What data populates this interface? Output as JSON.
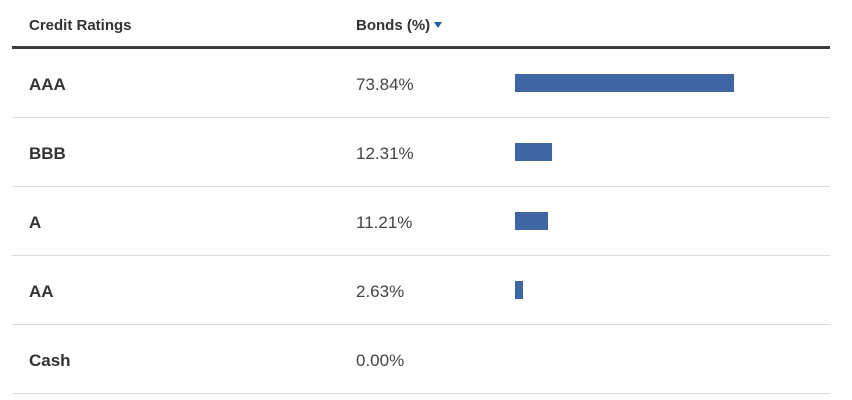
{
  "table": {
    "headers": {
      "rating": "Credit Ratings",
      "bonds": "Bonds (%)"
    },
    "sort": {
      "column": "bonds",
      "direction": "descending"
    },
    "bar_color": "#3f66a3",
    "rows": [
      {
        "rating": "AAA",
        "value_label": "73.84%",
        "value": 73.84
      },
      {
        "rating": "BBB",
        "value_label": "12.31%",
        "value": 12.31
      },
      {
        "rating": "A",
        "value_label": "11.21%",
        "value": 11.21
      },
      {
        "rating": "AA",
        "value_label": "2.63%",
        "value": 2.63
      },
      {
        "rating": "Cash",
        "value_label": "0.00%",
        "value": 0.0
      }
    ]
  }
}
